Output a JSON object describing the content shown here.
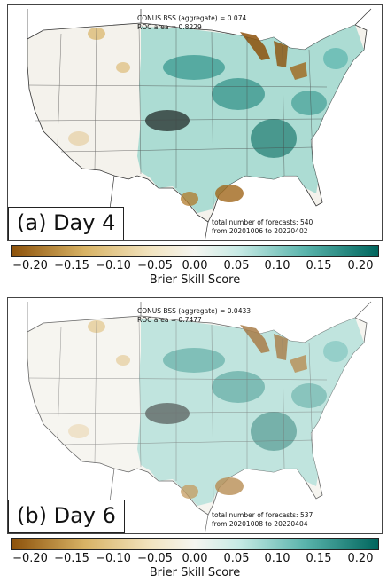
{
  "panels": [
    {
      "label": "(a) Day 4",
      "stats_line1": "CONUS BSS (aggregate) = 0.074",
      "stats_line2": "ROC area = 0.8229",
      "footer_line1": "total number of forecasts: 540",
      "footer_line2": "from 20201006 to 20220402"
    },
    {
      "label": "(b) Day 6",
      "stats_line1": "CONUS BSS (aggregate) = 0.0433",
      "stats_line2": "ROC area = 0.7477",
      "footer_line1": "total number of forecasts: 537",
      "footer_line2": "from 20201008 to 20220404"
    }
  ],
  "colorbar": {
    "title": "Brier Skill Score",
    "ticks": [
      "−0.20",
      "−0.15",
      "−0.10",
      "−0.05",
      "0.00",
      "0.05",
      "0.10",
      "0.15",
      "0.20"
    ],
    "range": [
      -0.22,
      0.22
    ],
    "colors": {
      "negative_strong": "#8c510a",
      "negative_mid": "#d8b365",
      "negative_light": "#f2e4c0",
      "neutral": "#f5f5f0",
      "positive_light": "#c7eae5",
      "positive_mid": "#5ab4ac",
      "positive_strong": "#01665e"
    }
  }
}
